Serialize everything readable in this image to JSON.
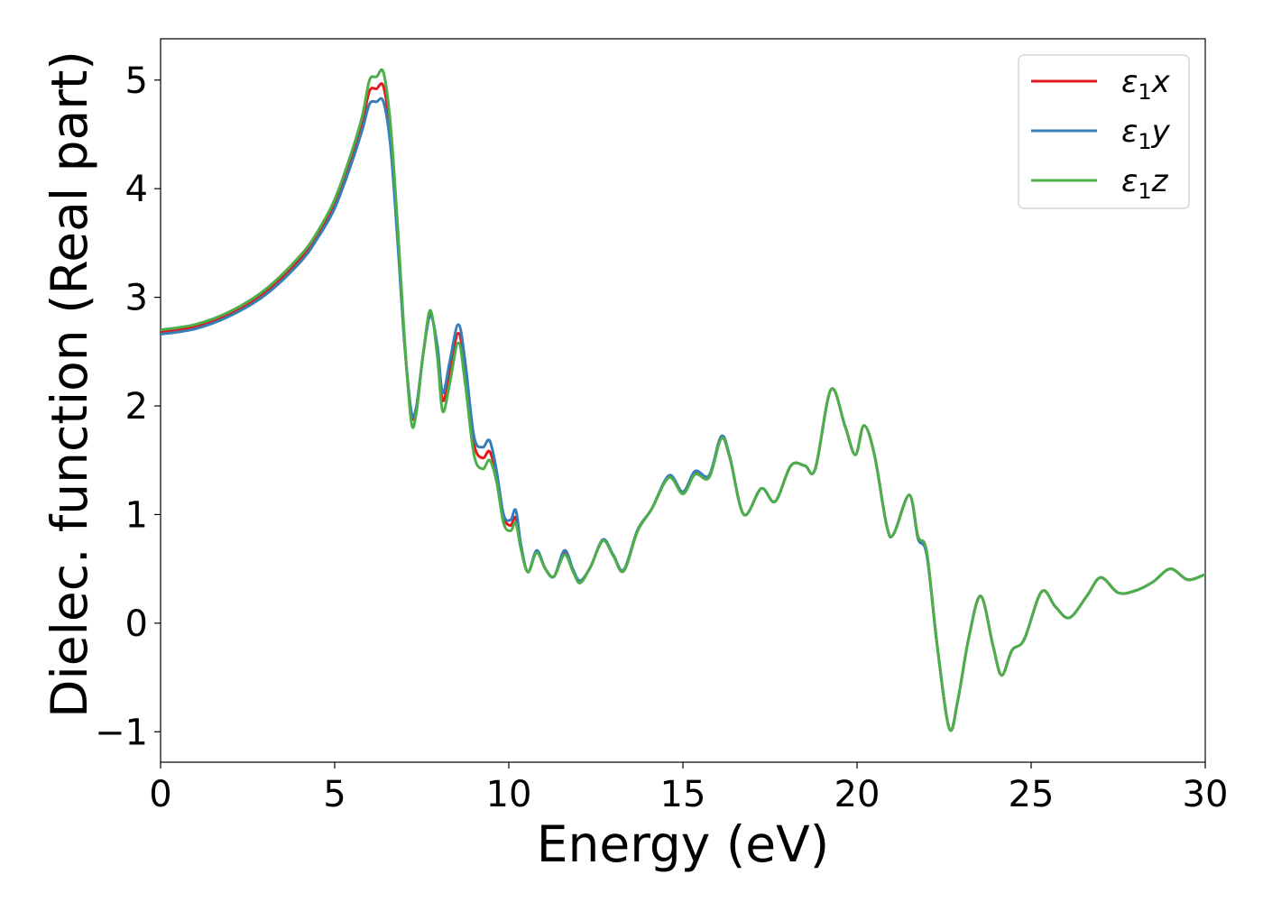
{
  "chart_data": {
    "type": "line",
    "xlabel": "Energy (eV)",
    "ylabel": "Dielec. function (Real part)",
    "xlim": [
      0,
      30
    ],
    "ylim": [
      -1.28,
      5.38
    ],
    "xticks": [
      0,
      5,
      10,
      15,
      20,
      25,
      30
    ],
    "xtick_labels": [
      "0",
      "5",
      "10",
      "15",
      "20",
      "25",
      "30"
    ],
    "yticks": [
      -1,
      0,
      1,
      2,
      3,
      4,
      5
    ],
    "ytick_labels": [
      "−1",
      "0",
      "1",
      "2",
      "3",
      "4",
      "5"
    ],
    "grid": false,
    "legend_position": "top-right",
    "series": [
      {
        "name": "ε₁x",
        "legend_base": "ε",
        "legend_sub": "1",
        "legend_var": "x",
        "color": "#e41a1c",
        "x": [
          0,
          1,
          2,
          3,
          4,
          4.5,
          5,
          5.5,
          5.8,
          6.0,
          6.2,
          6.4,
          6.6,
          6.8,
          7.0,
          7.2,
          7.35,
          7.55,
          7.75,
          7.95,
          8.1,
          8.3,
          8.55,
          8.75,
          9.0,
          9.25,
          9.45,
          9.65,
          9.85,
          10.05,
          10.2,
          10.35,
          10.55,
          10.8,
          11.05,
          11.3,
          11.6,
          11.85,
          12.05,
          12.35,
          12.7,
          13.0,
          13.3,
          13.7,
          14.1,
          14.6,
          15.0,
          15.35,
          15.75,
          16.1,
          16.35,
          16.75,
          17.25,
          17.65,
          18.1,
          18.5,
          18.8,
          19.25,
          19.65,
          19.95,
          20.2,
          20.5,
          20.85,
          21.05,
          21.5,
          21.75,
          22.0,
          22.3,
          22.65,
          22.9,
          23.2,
          23.55,
          23.9,
          24.15,
          24.45,
          24.8,
          25.3,
          25.7,
          26.1,
          26.6,
          27.0,
          27.5,
          28.0,
          28.5,
          29.0,
          29.5,
          30.0
        ],
        "y": [
          2.68,
          2.73,
          2.85,
          3.05,
          3.35,
          3.57,
          3.85,
          4.3,
          4.62,
          4.9,
          4.92,
          4.94,
          4.5,
          3.6,
          2.6,
          1.92,
          2.0,
          2.5,
          2.85,
          2.5,
          2.05,
          2.3,
          2.67,
          2.3,
          1.65,
          1.52,
          1.58,
          1.35,
          0.98,
          0.9,
          0.97,
          0.7,
          0.47,
          0.66,
          0.5,
          0.43,
          0.65,
          0.48,
          0.38,
          0.52,
          0.76,
          0.62,
          0.48,
          0.85,
          1.05,
          1.35,
          1.2,
          1.38,
          1.35,
          1.7,
          1.52,
          1.0,
          1.24,
          1.12,
          1.45,
          1.45,
          1.42,
          2.15,
          1.82,
          1.55,
          1.82,
          1.55,
          0.9,
          0.82,
          1.18,
          0.8,
          0.65,
          -0.2,
          -0.97,
          -0.7,
          -0.15,
          0.25,
          -0.2,
          -0.48,
          -0.25,
          -0.15,
          0.29,
          0.15,
          0.05,
          0.25,
          0.42,
          0.28,
          0.3,
          0.38,
          0.5,
          0.4,
          0.45
        ]
      },
      {
        "name": "ε₁y",
        "legend_base": "ε",
        "legend_sub": "1",
        "legend_var": "y",
        "color": "#377eb8",
        "x": [
          0,
          1,
          2,
          3,
          4,
          4.5,
          5,
          5.5,
          5.8,
          6.0,
          6.2,
          6.4,
          6.6,
          6.8,
          7.0,
          7.2,
          7.35,
          7.55,
          7.75,
          7.95,
          8.1,
          8.3,
          8.55,
          8.75,
          9.0,
          9.25,
          9.45,
          9.65,
          9.85,
          10.05,
          10.2,
          10.35,
          10.55,
          10.8,
          11.05,
          11.3,
          11.6,
          11.85,
          12.05,
          12.35,
          12.7,
          13.0,
          13.3,
          13.7,
          14.1,
          14.6,
          15.0,
          15.35,
          15.75,
          16.1,
          16.35,
          16.75,
          17.25,
          17.65,
          18.1,
          18.5,
          18.8,
          19.25,
          19.65,
          19.95,
          20.2,
          20.5,
          20.85,
          21.05,
          21.5,
          21.75,
          22.0,
          22.3,
          22.65,
          22.9,
          23.2,
          23.55,
          23.9,
          24.15,
          24.45,
          24.8,
          25.3,
          25.7,
          26.1,
          26.6,
          27.0,
          27.5,
          28.0,
          28.5,
          29.0,
          29.5,
          30.0
        ],
        "y": [
          2.66,
          2.71,
          2.83,
          3.02,
          3.32,
          3.54,
          3.82,
          4.25,
          4.55,
          4.78,
          4.8,
          4.8,
          4.4,
          3.55,
          2.6,
          1.95,
          2.0,
          2.5,
          2.83,
          2.55,
          2.12,
          2.4,
          2.75,
          2.4,
          1.72,
          1.62,
          1.68,
          1.4,
          1.0,
          0.95,
          1.04,
          0.72,
          0.47,
          0.67,
          0.5,
          0.43,
          0.67,
          0.49,
          0.39,
          0.52,
          0.77,
          0.63,
          0.49,
          0.86,
          1.05,
          1.36,
          1.21,
          1.4,
          1.36,
          1.72,
          1.53,
          1.0,
          1.24,
          1.12,
          1.45,
          1.45,
          1.42,
          2.15,
          1.82,
          1.55,
          1.82,
          1.55,
          0.9,
          0.82,
          1.18,
          0.78,
          0.63,
          -0.2,
          -0.97,
          -0.7,
          -0.15,
          0.25,
          -0.2,
          -0.48,
          -0.25,
          -0.15,
          0.29,
          0.15,
          0.05,
          0.25,
          0.42,
          0.28,
          0.3,
          0.38,
          0.5,
          0.4,
          0.45
        ]
      },
      {
        "name": "ε₁z",
        "legend_base": "ε",
        "legend_sub": "1",
        "legend_var": "z",
        "color": "#4daf4a",
        "x": [
          0,
          1,
          2,
          3,
          4,
          4.5,
          5,
          5.5,
          5.8,
          6.0,
          6.2,
          6.4,
          6.6,
          6.8,
          7.0,
          7.2,
          7.35,
          7.55,
          7.75,
          7.95,
          8.1,
          8.3,
          8.55,
          8.75,
          9.0,
          9.25,
          9.45,
          9.65,
          9.85,
          10.05,
          10.2,
          10.35,
          10.55,
          10.8,
          11.05,
          11.3,
          11.6,
          11.85,
          12.05,
          12.35,
          12.7,
          13.0,
          13.3,
          13.7,
          14.1,
          14.6,
          15.0,
          15.35,
          15.75,
          16.1,
          16.35,
          16.75,
          17.25,
          17.65,
          18.1,
          18.5,
          18.8,
          19.25,
          19.65,
          19.95,
          20.2,
          20.5,
          20.85,
          21.05,
          21.5,
          21.75,
          22.0,
          22.3,
          22.65,
          22.9,
          23.2,
          23.55,
          23.9,
          24.15,
          24.45,
          24.8,
          25.3,
          25.7,
          26.1,
          26.6,
          27.0,
          27.5,
          28.0,
          28.5,
          29.0,
          29.5,
          30.0
        ],
        "y": [
          2.7,
          2.75,
          2.87,
          3.07,
          3.38,
          3.6,
          3.9,
          4.35,
          4.68,
          5.0,
          5.03,
          5.07,
          4.6,
          3.7,
          2.65,
          1.85,
          1.95,
          2.5,
          2.88,
          2.45,
          1.95,
          2.2,
          2.58,
          2.2,
          1.55,
          1.42,
          1.5,
          1.3,
          0.92,
          0.85,
          0.92,
          0.68,
          0.47,
          0.65,
          0.5,
          0.43,
          0.63,
          0.47,
          0.37,
          0.52,
          0.76,
          0.62,
          0.48,
          0.85,
          1.05,
          1.34,
          1.19,
          1.37,
          1.34,
          1.7,
          1.52,
          1.0,
          1.24,
          1.12,
          1.45,
          1.45,
          1.42,
          2.15,
          1.82,
          1.55,
          1.82,
          1.55,
          0.9,
          0.82,
          1.18,
          0.8,
          0.66,
          -0.2,
          -0.97,
          -0.7,
          -0.15,
          0.25,
          -0.2,
          -0.48,
          -0.25,
          -0.15,
          0.29,
          0.15,
          0.05,
          0.25,
          0.42,
          0.28,
          0.3,
          0.38,
          0.5,
          0.4,
          0.45
        ]
      }
    ]
  }
}
